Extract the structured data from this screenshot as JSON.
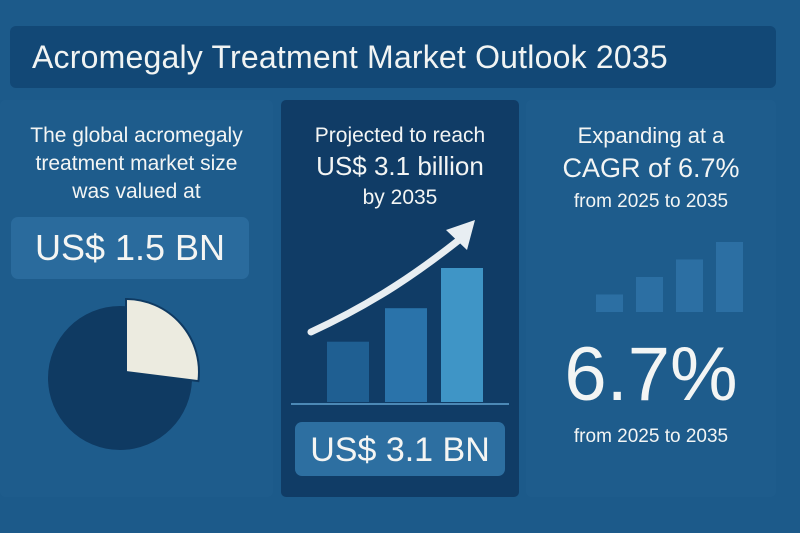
{
  "header": {
    "title": "Acromegaly Treatment Market Outlook 2035"
  },
  "left": {
    "lines": [
      "The global acromegaly",
      "treatment market size",
      "was valued at"
    ],
    "value": "US$ 1.5 BN",
    "pie": {
      "highlighted_share": 0.27
    }
  },
  "middle": {
    "lines": [
      "Projected to reach",
      "US$ 3.1 billion",
      "by 2035"
    ],
    "value": "US$ 3.1 BN",
    "bars": [
      0.45,
      0.7,
      1.0
    ]
  },
  "right": {
    "lines": [
      "Expanding at a",
      "CAGR of 6.7%",
      "from 2025 to 2035"
    ],
    "big_value": "6.7%",
    "caption": "from 2025 to 2035",
    "bars": [
      0.25,
      0.5,
      0.75,
      1.0
    ]
  },
  "colors": {
    "background": "#1c5a8a",
    "title_bar": "#124876",
    "dark_panel": "#103c66",
    "pie_dark": "#0f3a62",
    "pie_light": "#ecebe0",
    "accent_bar": "#3f95c6",
    "arrow": "#e8eef2"
  }
}
